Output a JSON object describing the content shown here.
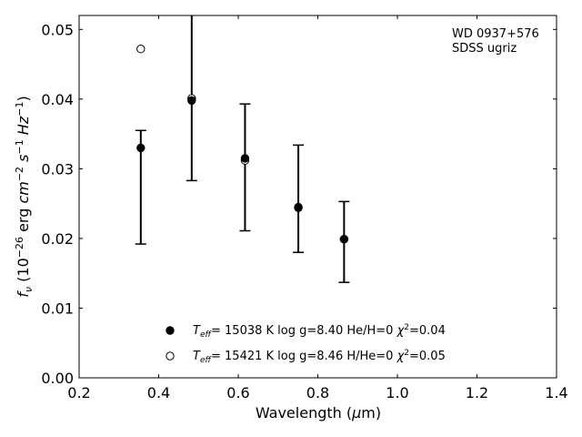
{
  "chart_data": {
    "type": "scatter",
    "xlabel": "Wavelength (μm)",
    "xlabel_parts": [
      "Wavelength (",
      "μ",
      "m)"
    ],
    "ylabel_parts": [
      "f",
      "ν",
      " (10",
      "−26",
      " erg ",
      "cm",
      "−2",
      " ",
      "s",
      "−1",
      " ",
      "Hz",
      "−1",
      ")"
    ],
    "xlim": [
      0.2,
      1.4
    ],
    "ylim": [
      0.0,
      0.052
    ],
    "xticks": [
      0.2,
      0.4,
      0.6,
      0.8,
      1.0,
      1.2,
      1.4
    ],
    "xtick_labels": [
      "0.2",
      "0.4",
      "0.6",
      "0.8",
      "1.0",
      "1.2",
      "1.4"
    ],
    "yticks": [
      0.0,
      0.01,
      0.02,
      0.03,
      0.04,
      0.05
    ],
    "ytick_labels": [
      "0.00",
      "0.01",
      "0.02",
      "0.03",
      "0.04",
      "0.05"
    ],
    "grid": false,
    "annotation": [
      "WD 0937+576",
      "SDSS ugriz"
    ],
    "legend_position": "bottom-center",
    "observed": {
      "x": [
        0.355,
        0.483,
        0.617,
        0.751,
        0.866
      ],
      "y": [
        0.033,
        0.04,
        0.0314,
        0.0245,
        0.02
      ],
      "err_low": [
        0.0192,
        0.0283,
        0.0211,
        0.018,
        0.0137
      ],
      "err_high": [
        0.0355,
        0.0525,
        0.0393,
        0.0334,
        0.0253
      ]
    },
    "series": [
      {
        "marker": "filled-circle",
        "color": "#000000",
        "x": [
          0.355,
          0.483,
          0.617,
          0.751,
          0.866
        ],
        "y": [
          0.033,
          0.0398,
          0.0315,
          0.0245,
          0.0199
        ],
        "legend_parts": [
          "T",
          "eff",
          "= 15038 K  log g=8.40  He/H=0  ",
          "χ",
          "2",
          "=0.04"
        ]
      },
      {
        "marker": "open-circle",
        "color": "#000000",
        "x": [
          0.355,
          0.483,
          0.617,
          0.751,
          0.866
        ],
        "y": [
          0.0472,
          0.0401,
          0.0312,
          0.0244,
          0.0199
        ],
        "legend_parts": [
          "T",
          "eff",
          "= 15421 K  log g=8.46  H/He=0  ",
          "χ",
          "2",
          "=0.05"
        ]
      }
    ]
  }
}
